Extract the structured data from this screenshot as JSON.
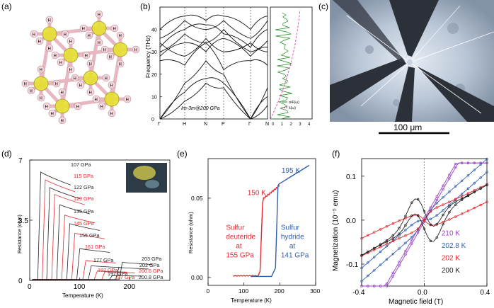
{
  "panels": {
    "a": {
      "label": "(a)",
      "atom_label": "H"
    },
    "b": {
      "label": "(b)"
    },
    "c": {
      "label": "(c)",
      "scale_label": "100 μm"
    },
    "d": {
      "label": "(d)"
    },
    "e": {
      "label": "(e)"
    },
    "f": {
      "label": "(f)"
    }
  },
  "colors": {
    "black": "#222222",
    "red": "#e8262c",
    "blue": "#2e5fb0",
    "purple": "#9b45c6",
    "green": "#1e8a1e",
    "magenta": "#d4329e"
  },
  "chart_data": [
    {
      "id": "b",
      "type": "line",
      "ylabel": "Frequency (THz)",
      "ylim": [
        0,
        50
      ],
      "yticks": [
        "0",
        "10",
        "20",
        "30",
        "40"
      ],
      "xticks": [
        "Γ",
        "H",
        "N",
        "P",
        "Γ",
        "N"
      ],
      "annotation": "Im-3m@200 GPa",
      "side": {
        "xticks": [
          "0",
          "1",
          "2",
          "3",
          "4"
        ],
        "legend": [
          "α²F(ω)",
          "λ(ω)"
        ]
      }
    },
    {
      "id": "d",
      "type": "line",
      "xlabel": "Temperature (K)",
      "ylabel": "Resistance (ohm)",
      "xlim": [
        0,
        280
      ],
      "ylim": [
        0,
        7
      ],
      "xticks": [
        "0",
        "100",
        "200"
      ],
      "yticks": [
        "0",
        "3.5",
        "7"
      ],
      "series": [
        {
          "name": "107 GPa",
          "color": "black",
          "tc": 22,
          "r": 6.3
        },
        {
          "name": "115 GPa",
          "color": "red",
          "tc": 31,
          "r": 5.85
        },
        {
          "name": "122 GPa",
          "color": "black",
          "tc": 40,
          "r": 5.4
        },
        {
          "name": "129 GPa",
          "color": "red",
          "tc": 50,
          "r": 5.0
        },
        {
          "name": "135 GPa",
          "color": "black",
          "tc": 60,
          "r": 4.4
        },
        {
          "name": "145 GPa",
          "color": "red",
          "tc": 70,
          "r": 3.8
        },
        {
          "name": "155 GPa",
          "color": "black",
          "tc": 80,
          "r": 3.3
        },
        {
          "name": "161 GPa",
          "color": "red",
          "tc": 90,
          "r": 2.75
        },
        {
          "name": "177 GPa",
          "color": "black",
          "tc": 100,
          "r": 1.85
        },
        {
          "name": "192 GPa",
          "color": "red",
          "tc": 112,
          "r": 1.15
        },
        {
          "name": "197 GPa",
          "color": "black",
          "tc": 123,
          "r": 0.85
        },
        {
          "name": "197 GPa",
          "color": "red",
          "tc": 135,
          "r": 0.55
        },
        {
          "name": "200.6 GPa",
          "color": "red",
          "tc": 150,
          "r": 0.5
        },
        {
          "name": "200.8 GPa",
          "color": "black",
          "tc": 165,
          "r": 0.28
        },
        {
          "name": "202 GPa",
          "color": "black",
          "tc": 178,
          "r": 0.75
        },
        {
          "name": "203 GPa",
          "color": "black",
          "tc": 185,
          "r": 1.05
        }
      ]
    },
    {
      "id": "e",
      "type": "line",
      "xlabel": "Temperature (K)",
      "ylabel": "Resistance (ohm)",
      "xlim": [
        0,
        300
      ],
      "ylim": [
        -0.005,
        0.075
      ],
      "xticks": [
        "0",
        "100",
        "200",
        "300"
      ],
      "yticks": [
        "0.00",
        "0.05"
      ],
      "series": [
        {
          "name": "Sulfur deuteride at 155 GPa",
          "color": "red",
          "tc": 150
        },
        {
          "name": "Sulfur hydride at 141 GPa",
          "color": "blue",
          "tc": 195
        }
      ],
      "annotations": [
        "195 K",
        "150 K",
        "Sulfur",
        "deuteride",
        "at",
        "155 GPa",
        "Sulfur",
        "hydride",
        "at",
        "141 GPa"
      ]
    },
    {
      "id": "f",
      "type": "line",
      "xlabel": "Magnetic field (T)",
      "ylabel": "Magnetization (10⁻⁵ emu)",
      "xlim": [
        -0.4,
        0.4
      ],
      "ylim": [
        -0.15,
        0.14
      ],
      "xticks": [
        "-0.4",
        "0.0",
        "0.4"
      ],
      "yticks": [
        "-0.1",
        "0.0",
        "0.1"
      ],
      "series": [
        {
          "name": "210 K",
          "color": "purple"
        },
        {
          "name": "202.8 K",
          "color": "blue"
        },
        {
          "name": "202 K",
          "color": "red"
        },
        {
          "name": "200 K",
          "color": "black"
        }
      ]
    }
  ]
}
